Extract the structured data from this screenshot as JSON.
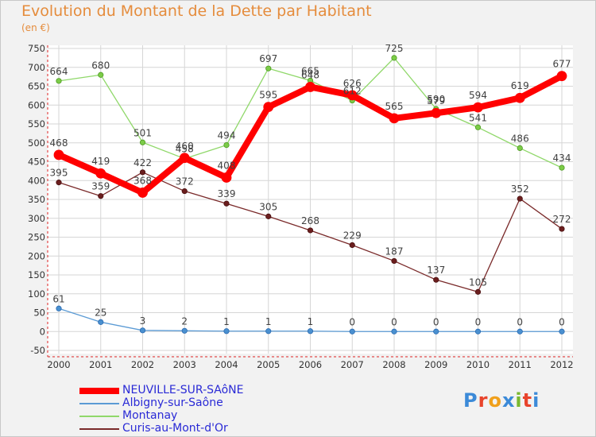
{
  "title": "Evolution du Montant de la Dette par Habitant",
  "unit_label": "(en €)",
  "logo_text": "Proxiti",
  "logo_colors": [
    "#3c8ad8",
    "#e8442c",
    "#f0a01c",
    "#3c8ad8",
    "#7ab830",
    "#e8442c",
    "#3c8ad8"
  ],
  "chart_data": {
    "type": "line",
    "x": [
      "2000",
      "2001",
      "2002",
      "2003",
      "2004",
      "2005",
      "2006",
      "2007",
      "2008",
      "2009",
      "2010",
      "2011",
      "2012"
    ],
    "ylim": [
      -50,
      750
    ],
    "yticks": [
      -50,
      0,
      50,
      100,
      150,
      200,
      250,
      300,
      350,
      400,
      450,
      500,
      550,
      600,
      650,
      700,
      750
    ],
    "grid": true,
    "legend_position": "bottom-left",
    "series": [
      {
        "name": "NEUVILLE-SUR-SAôNE",
        "color": "#ff0000",
        "values": [
          468,
          419,
          368,
          460,
          408,
          595,
          648,
          626,
          565,
          579,
          594,
          619,
          677
        ],
        "labels": [
          "468",
          "419",
          "368",
          "460",
          "408",
          "595",
          "648",
          "626",
          "565",
          "579",
          "594",
          "619",
          "677"
        ]
      },
      {
        "name": "Albigny-sur-Saône",
        "color": "#5b9bd5",
        "values": [
          61,
          25,
          3,
          2,
          1,
          1,
          1,
          0,
          0,
          0,
          0,
          0,
          0
        ],
        "labels": [
          "61",
          "25",
          "3",
          "2",
          "1",
          "1",
          "1",
          "0",
          "0",
          "0",
          "0",
          "0",
          "0"
        ]
      },
      {
        "name": "Montanay",
        "color": "#90d86a",
        "values": [
          664,
          680,
          501,
          458,
          494,
          697,
          665,
          612,
          725,
          590,
          541,
          486,
          434
        ],
        "labels": [
          "664",
          "680",
          "501",
          "458",
          "494",
          "697",
          "665",
          "612",
          "725",
          "590",
          "541",
          "486",
          "434"
        ]
      },
      {
        "name": "Curis-au-Mont-d'Or",
        "color": "#7a2a2a",
        "values": [
          395,
          359,
          422,
          372,
          339,
          305,
          268,
          229,
          187,
          137,
          105,
          352,
          272
        ],
        "labels": [
          "395",
          "359",
          "422",
          "372",
          "339",
          "305",
          "268",
          "229",
          "187",
          "137",
          "105",
          "352",
          "272"
        ]
      }
    ]
  }
}
